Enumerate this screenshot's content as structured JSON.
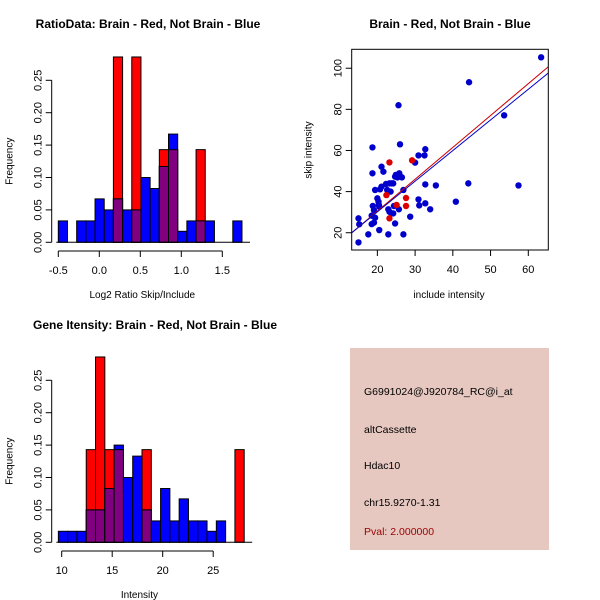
{
  "colors": {
    "brain": "#ff0000",
    "not_brain": "#0000ff",
    "overlap": "#800080",
    "info_bg": "#e6c8c0",
    "pval": "#990000"
  },
  "chart_data": [
    {
      "type": "bar",
      "id": "ratio",
      "title": "RatioData: Brain - Red, Not Brain - Blue",
      "xlabel": "Log2 Ratio Skip/Include",
      "ylabel": "Frequency",
      "bin_start": -0.5,
      "bin_width": 0.112,
      "xticks": [
        -0.5,
        0.0,
        0.5,
        1.0,
        1.5
      ],
      "xtick_labels": [
        "-0.5",
        "0.0",
        "0.5",
        "1.0",
        "1.5"
      ],
      "yticks": [
        0.0,
        0.05,
        0.1,
        0.15,
        0.2,
        0.25
      ],
      "ytick_labels": [
        "0.00",
        "0.05",
        "0.10",
        "0.15",
        "0.20",
        "0.25"
      ],
      "series": [
        {
          "name": "Not Brain",
          "color": "blue",
          "values": [
            0.033,
            0,
            0.033,
            0.033,
            0.067,
            0.05,
            0.067,
            0.05,
            0.05,
            0.1,
            0.083,
            0.117,
            0.167,
            0.017,
            0.033,
            0.033,
            0.033,
            0,
            0,
            0.033
          ]
        },
        {
          "name": "Brain",
          "color": "red",
          "values": [
            0,
            0,
            0,
            0,
            0,
            0,
            0.286,
            0,
            0.286,
            0,
            0,
            0.143,
            0.143,
            0,
            0,
            0.143,
            0,
            0,
            0,
            0
          ]
        }
      ]
    },
    {
      "type": "scatter",
      "id": "scatter",
      "title": "Brain - Red, Not Brain - Blue",
      "xlabel": "include intensity",
      "ylabel": "skip intensity",
      "xlim": [
        13.2,
        65.3
      ],
      "ylim": [
        11.6,
        109.2
      ],
      "xticks": [
        20,
        30,
        40,
        50,
        60
      ],
      "yticks": [
        20,
        40,
        60,
        80,
        100
      ],
      "series": [
        {
          "name": "Not Brain",
          "color": "blue",
          "points": [
            [
              15.0,
              27.0
            ],
            [
              15.2,
              24.1
            ],
            [
              15.0,
              15.3
            ],
            [
              17.6,
              19.2
            ],
            [
              18.5,
              28.3
            ],
            [
              18.8,
              33.0
            ],
            [
              19.1,
              31.0
            ],
            [
              19.1,
              24.9
            ],
            [
              19.4,
              27.3
            ],
            [
              18.5,
              24.2
            ],
            [
              19.4,
              40.8
            ],
            [
              20.0,
              36.7
            ],
            [
              20.3,
              35.1
            ],
            [
              20.4,
              33.5
            ],
            [
              20.5,
              32.7
            ],
            [
              20.5,
              21.3
            ],
            [
              20.7,
              41.1
            ],
            [
              21.1,
              52.1
            ],
            [
              21.6,
              49.7
            ],
            [
              18.7,
              48.9
            ],
            [
              18.7,
              61.5
            ],
            [
              22.6,
              40.8
            ],
            [
              23.2,
              44.0
            ],
            [
              23.5,
              40.0
            ],
            [
              23.8,
              44.0
            ],
            [
              24.2,
              44.0
            ],
            [
              22.9,
              31.4
            ],
            [
              23.2,
              30.2
            ],
            [
              23.8,
              29.4
            ],
            [
              24.2,
              29.4
            ],
            [
              22.9,
              19.2
            ],
            [
              24.4,
              33.0
            ],
            [
              24.7,
              47.3
            ],
            [
              24.9,
              48.1
            ],
            [
              25.3,
              46.9
            ],
            [
              25.6,
              47.6
            ],
            [
              25.8,
              48.9
            ],
            [
              26.2,
              47.3
            ],
            [
              26.5,
              46.9
            ],
            [
              26.0,
              63.0
            ],
            [
              25.6,
              82.0
            ],
            [
              26.9,
              40.8
            ],
            [
              24.7,
              24.5
            ],
            [
              25.7,
              31.4
            ],
            [
              26.9,
              19.2
            ],
            [
              28.7,
              27.8
            ],
            [
              30.0,
              54.1
            ],
            [
              30.9,
              57.6
            ],
            [
              32.5,
              57.6
            ],
            [
              32.7,
              60.6
            ],
            [
              32.7,
              43.5
            ],
            [
              30.9,
              36.2
            ],
            [
              31.1,
              33.3
            ],
            [
              32.7,
              34.3
            ],
            [
              34.0,
              31.4
            ],
            [
              35.5,
              43.0
            ],
            [
              40.8,
              35.1
            ],
            [
              44.1,
              44.0
            ],
            [
              44.3,
              93.2
            ],
            [
              53.6,
              77.1
            ],
            [
              57.4,
              43.0
            ],
            [
              63.4,
              105.3
            ],
            [
              21.1,
              42.4
            ],
            [
              22.3,
              43.7
            ]
          ]
        },
        {
          "name": "Brain",
          "color": "red",
          "points": [
            [
              23.2,
              54.2
            ],
            [
              22.4,
              38.3
            ],
            [
              25.1,
              33.5
            ],
            [
              23.2,
              27.0
            ],
            [
              27.6,
              36.9
            ],
            [
              27.6,
              33.0
            ],
            [
              29.2,
              55.2
            ]
          ]
        }
      ],
      "fit_lines": [
        {
          "name": "Brain fit",
          "color": "#cc0000",
          "slope": 1.55,
          "intercept": -0.5
        },
        {
          "name": "Not Brain fit",
          "color": "#0000cc",
          "slope": 1.49,
          "intercept": 0.35
        }
      ]
    },
    {
      "type": "bar",
      "id": "intensity",
      "title": "Gene Itensity: Brain - Red, Not Brain - Blue",
      "xlabel": "Intensity",
      "ylabel": "Frequency",
      "bin_start": 9.67,
      "bin_width": 0.92,
      "xticks": [
        10,
        15,
        20,
        25
      ],
      "xtick_labels": [
        "10",
        "15",
        "20",
        "25"
      ],
      "yticks": [
        0.0,
        0.05,
        0.1,
        0.15,
        0.2,
        0.25
      ],
      "ytick_labels": [
        "0.00",
        "0.05",
        "0.10",
        "0.15",
        "0.20",
        "0.25"
      ],
      "series": [
        {
          "name": "Not Brain",
          "color": "blue",
          "values": [
            0.017,
            0.017,
            0.017,
            0.05,
            0.05,
            0.083,
            0.15,
            0.1,
            0.133,
            0.05,
            0.033,
            0.083,
            0.033,
            0.067,
            0.033,
            0.033,
            0.017,
            0.033,
            0,
            0
          ]
        },
        {
          "name": "Brain",
          "color": "red",
          "values": [
            0,
            0,
            0,
            0.143,
            0.286,
            0.143,
            0.143,
            0,
            0,
            0.143,
            0,
            0,
            0,
            0,
            0,
            0,
            0,
            0,
            0,
            0.143
          ]
        }
      ]
    }
  ],
  "info": {
    "probe_id": "G6991024@J920784_RC@i_at",
    "event_type": "altCassette",
    "gene": "Hdac10",
    "location": "chr15.9270-1.31",
    "pval": "Pval: 2.000000"
  }
}
